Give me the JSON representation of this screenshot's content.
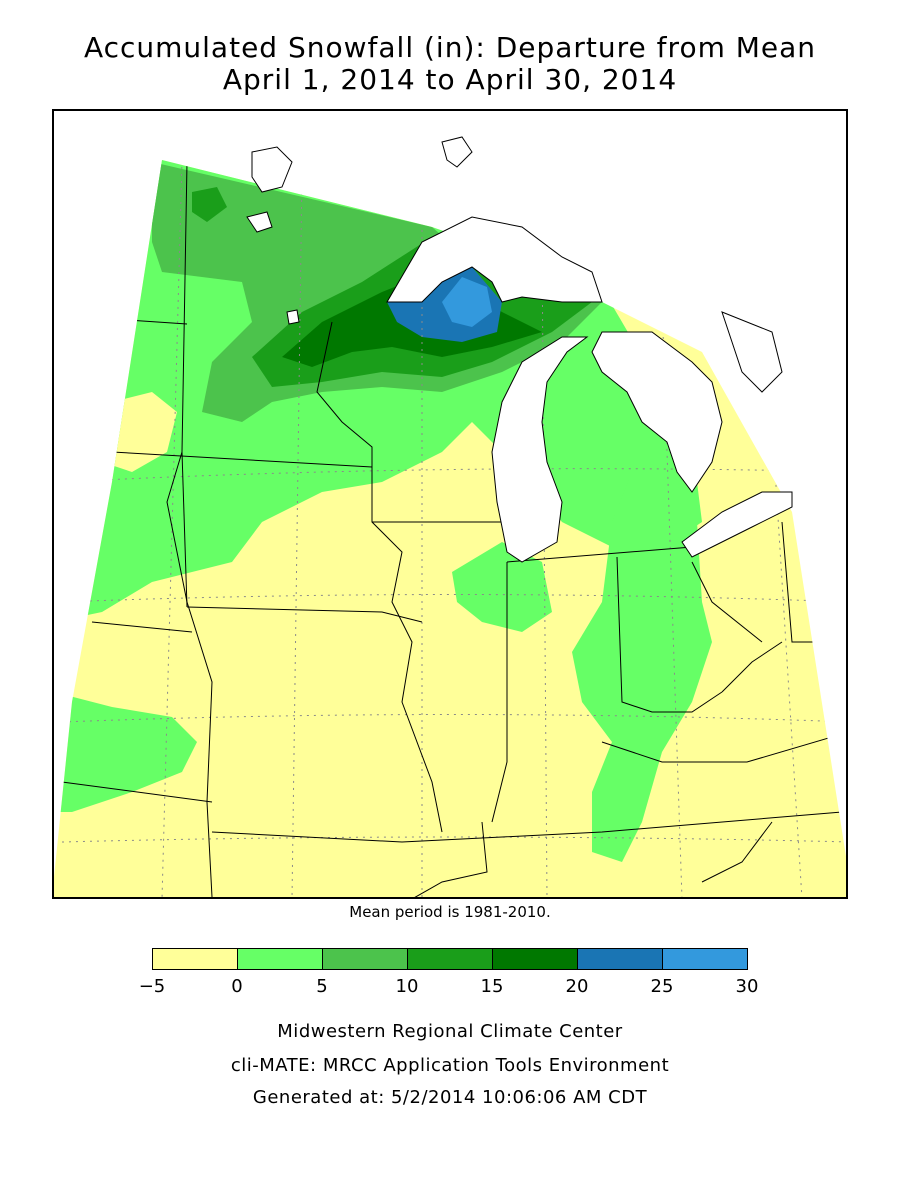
{
  "title": {
    "line1": "Accumulated Snowfall (in): Departure from Mean",
    "line2": "April 1, 2014 to April 30, 2014"
  },
  "note": "Mean period is 1981-2010.",
  "legend": {
    "colors": [
      "#ffff99",
      "#66ff66",
      "#4cc34c",
      "#1a9e1a",
      "#007800",
      "#1a75b4",
      "#3399dd"
    ],
    "ticks": [
      "−5",
      "0",
      "5",
      "10",
      "15",
      "20",
      "25",
      "30"
    ]
  },
  "credits": {
    "line1": "Midwestern Regional Climate Center",
    "line2": "cli-MATE: MRCC Application Tools Environment",
    "line3": "Generated at: 5/2/2014 10:06:06 AM CDT"
  }
}
